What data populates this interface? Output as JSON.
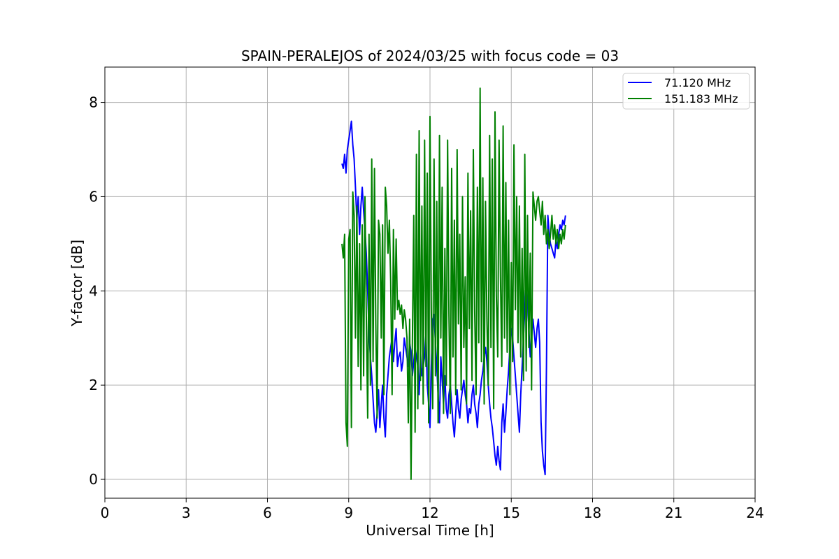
{
  "chart_data": {
    "type": "line",
    "title": "SPAIN-PERALEJOS of 2024/03/25 with focus code = 03",
    "xlabel": "Universal Time [h]",
    "ylabel": "Y-factor [dB]",
    "xlim": [
      0,
      24
    ],
    "ylim": [
      -0.4,
      8.75
    ],
    "xticks": [
      0,
      3,
      6,
      9,
      12,
      15,
      18,
      21,
      24
    ],
    "yticks": [
      0,
      2,
      4,
      6,
      8
    ],
    "grid": true,
    "legend_position": "top-right",
    "series": [
      {
        "name": "71.120 MHz",
        "color": "#0000ff",
        "x": [
          8.75,
          8.8,
          8.85,
          8.9,
          8.95,
          9.0,
          9.05,
          9.1,
          9.15,
          9.2,
          9.25,
          9.3,
          9.35,
          9.4,
          9.45,
          9.5,
          9.55,
          9.6,
          9.65,
          9.7,
          9.75,
          9.8,
          9.85,
          9.9,
          9.95,
          10.0,
          10.05,
          10.1,
          10.15,
          10.2,
          10.25,
          10.3,
          10.35,
          10.4,
          10.45,
          10.5,
          10.55,
          10.6,
          10.65,
          10.7,
          10.75,
          10.8,
          10.85,
          10.9,
          10.95,
          11.0,
          11.05,
          11.1,
          11.15,
          11.2,
          11.25,
          11.3,
          11.35,
          11.4,
          11.45,
          11.5,
          11.55,
          11.6,
          11.65,
          11.7,
          11.75,
          11.8,
          11.85,
          11.9,
          11.95,
          12.0,
          12.05,
          12.1,
          12.15,
          12.2,
          12.25,
          12.3,
          12.35,
          12.4,
          12.45,
          12.5,
          12.55,
          12.6,
          12.65,
          12.7,
          12.75,
          12.8,
          12.85,
          12.9,
          12.95,
          13.0,
          13.05,
          13.1,
          13.15,
          13.2,
          13.25,
          13.3,
          13.35,
          13.4,
          13.45,
          13.5,
          13.55,
          13.6,
          13.65,
          13.7,
          13.75,
          13.8,
          13.85,
          13.9,
          13.95,
          14.0,
          14.05,
          14.1,
          14.15,
          14.2,
          14.25,
          14.3,
          14.35,
          14.4,
          14.45,
          14.5,
          14.55,
          14.6,
          14.65,
          14.7,
          14.75,
          14.8,
          14.85,
          14.9,
          14.95,
          15.0,
          15.05,
          15.1,
          15.15,
          15.2,
          15.25,
          15.3,
          15.35,
          15.4,
          15.45,
          15.5,
          15.55,
          15.6,
          15.65,
          15.7,
          15.75,
          15.8,
          15.85,
          15.9,
          15.95,
          16.0,
          16.05,
          16.1,
          16.15,
          16.2,
          16.25,
          16.3,
          16.35,
          16.4,
          16.45,
          16.5,
          16.55,
          16.6,
          16.65,
          16.7,
          16.75,
          16.8,
          16.85,
          16.9,
          16.95,
          17.0
        ],
        "y": [
          6.7,
          6.6,
          6.9,
          6.5,
          7.0,
          7.2,
          7.4,
          7.6,
          7.1,
          6.8,
          6.2,
          5.5,
          6.0,
          5.2,
          5.8,
          6.2,
          5.7,
          5.3,
          4.8,
          4.0,
          3.1,
          2.6,
          2.2,
          1.7,
          1.2,
          1.0,
          1.4,
          1.9,
          1.1,
          1.6,
          2.0,
          1.3,
          0.9,
          1.8,
          2.2,
          2.6,
          2.8,
          3.0,
          2.5,
          2.9,
          3.2,
          2.4,
          2.6,
          2.7,
          2.3,
          2.5,
          3.0,
          2.8,
          2.6,
          2.4,
          2.9,
          2.7,
          2.2,
          2.5,
          2.8,
          2.6,
          2.4,
          1.8,
          2.7,
          2.2,
          2.4,
          2.6,
          3.1,
          2.0,
          1.6,
          1.1,
          2.4,
          3.4,
          3.5,
          2.9,
          2.4,
          1.8,
          1.2,
          2.6,
          2.1,
          1.6,
          2.2,
          1.5,
          1.3,
          1.8,
          2.0,
          1.6,
          1.2,
          0.9,
          1.4,
          1.9,
          1.5,
          1.3,
          1.7,
          1.9,
          2.1,
          1.8,
          1.6,
          1.2,
          1.5,
          1.4,
          1.8,
          2.0,
          1.6,
          1.4,
          1.1,
          1.6,
          1.8,
          2.1,
          2.3,
          2.6,
          2.8,
          2.5,
          2.0,
          1.6,
          1.3,
          1.1,
          0.8,
          0.5,
          0.3,
          0.7,
          0.4,
          0.2,
          1.2,
          1.6,
          1.0,
          1.4,
          1.9,
          2.3,
          2.8,
          3.2,
          3.0,
          2.6,
          2.2,
          1.8,
          1.4,
          1.0,
          1.8,
          2.4,
          3.0,
          3.6,
          4.2,
          3.8,
          3.2,
          2.6,
          3.0,
          3.4,
          3.1,
          2.8,
          3.2,
          3.4,
          2.9,
          1.2,
          0.6,
          0.3,
          0.1,
          2.4,
          5.6,
          5.2,
          5.0,
          4.9,
          4.8,
          4.7,
          5.1,
          4.9,
          5.2,
          5.4,
          5.3,
          5.5,
          5.4,
          5.6
        ]
      },
      {
        "name": "151.183 MHz",
        "color": "#008000",
        "x": [
          8.75,
          8.8,
          8.85,
          8.9,
          8.95,
          9.0,
          9.05,
          9.1,
          9.15,
          9.2,
          9.25,
          9.3,
          9.35,
          9.4,
          9.45,
          9.5,
          9.55,
          9.6,
          9.65,
          9.7,
          9.75,
          9.8,
          9.85,
          9.9,
          9.95,
          10.0,
          10.05,
          10.1,
          10.15,
          10.2,
          10.25,
          10.3,
          10.35,
          10.4,
          10.45,
          10.5,
          10.55,
          10.6,
          10.65,
          10.7,
          10.75,
          10.8,
          10.85,
          10.9,
          10.95,
          11.0,
          11.05,
          11.1,
          11.15,
          11.2,
          11.25,
          11.3,
          11.35,
          11.4,
          11.45,
          11.5,
          11.55,
          11.6,
          11.65,
          11.7,
          11.75,
          11.8,
          11.85,
          11.9,
          11.95,
          12.0,
          12.05,
          12.1,
          12.15,
          12.2,
          12.25,
          12.3,
          12.35,
          12.4,
          12.45,
          12.5,
          12.55,
          12.6,
          12.65,
          12.7,
          12.75,
          12.8,
          12.85,
          12.9,
          12.95,
          13.0,
          13.05,
          13.1,
          13.15,
          13.2,
          13.25,
          13.3,
          13.35,
          13.4,
          13.45,
          13.5,
          13.55,
          13.6,
          13.65,
          13.7,
          13.75,
          13.8,
          13.85,
          13.9,
          13.95,
          14.0,
          14.05,
          14.1,
          14.15,
          14.2,
          14.25,
          14.3,
          14.35,
          14.4,
          14.45,
          14.5,
          14.55,
          14.6,
          14.65,
          14.7,
          14.75,
          14.8,
          14.85,
          14.9,
          14.95,
          15.0,
          15.05,
          15.1,
          15.15,
          15.2,
          15.25,
          15.3,
          15.35,
          15.4,
          15.45,
          15.5,
          15.55,
          15.6,
          15.65,
          15.7,
          15.75,
          15.8,
          15.85,
          15.9,
          15.95,
          16.0,
          16.05,
          16.1,
          16.15,
          16.2,
          16.25,
          16.3,
          16.35,
          16.4,
          16.45,
          16.5,
          16.55,
          16.6,
          16.65,
          16.7,
          16.75,
          16.8,
          16.85,
          16.9,
          16.95,
          17.0
        ],
        "y": [
          5.0,
          4.7,
          5.2,
          1.2,
          0.7,
          5.1,
          5.3,
          1.1,
          6.1,
          5.6,
          3.0,
          5.8,
          2.4,
          5.0,
          1.9,
          5.4,
          2.2,
          6.0,
          3.5,
          1.3,
          5.2,
          2.0,
          6.8,
          2.5,
          6.6,
          3.3,
          1.3,
          5.5,
          5.2,
          3.0,
          5.4,
          1.8,
          6.2,
          5.8,
          4.8,
          5.5,
          4.2,
          1.8,
          5.3,
          3.4,
          5.1,
          3.6,
          3.8,
          3.5,
          3.7,
          3.2,
          3.6,
          3.4,
          3.0,
          1.2,
          3.4,
          0.0,
          2.9,
          5.6,
          1.0,
          6.9,
          1.5,
          7.4,
          2.1,
          5.8,
          1.6,
          7.2,
          2.4,
          6.5,
          1.2,
          7.7,
          3.6,
          1.5,
          6.8,
          2.2,
          5.9,
          1.2,
          7.3,
          3.0,
          6.2,
          1.4,
          4.9,
          2.0,
          7.2,
          3.5,
          1.4,
          6.6,
          2.6,
          5.5,
          1.8,
          7.0,
          3.3,
          5.2,
          1.9,
          6.0,
          2.8,
          4.3,
          1.6,
          6.5,
          3.2,
          5.7,
          2.1,
          7.0,
          3.6,
          1.8,
          6.2,
          2.9,
          8.3,
          2.5,
          6.4,
          1.6,
          5.9,
          3.4,
          2.0,
          7.3,
          2.8,
          6.8,
          1.5,
          7.8,
          3.9,
          2.6,
          7.2,
          4.3,
          2.4,
          7.5,
          3.0,
          6.3,
          2.7,
          5.5,
          1.8,
          4.6,
          2.5,
          7.1,
          3.6,
          6.0,
          2.9,
          5.8,
          2.6,
          4.9,
          2.1,
          6.9,
          2.3,
          5.6,
          2.8,
          4.8,
          1.9,
          6.1,
          5.8,
          5.5,
          5.9,
          6.0,
          5.7,
          5.4,
          5.9,
          5.2,
          5.6,
          5.0,
          5.3,
          4.9,
          5.2,
          5.6,
          5.1,
          5.4,
          5.0,
          5.3,
          4.9,
          5.2,
          5.0,
          5.3,
          5.1,
          5.4
        ]
      }
    ]
  }
}
